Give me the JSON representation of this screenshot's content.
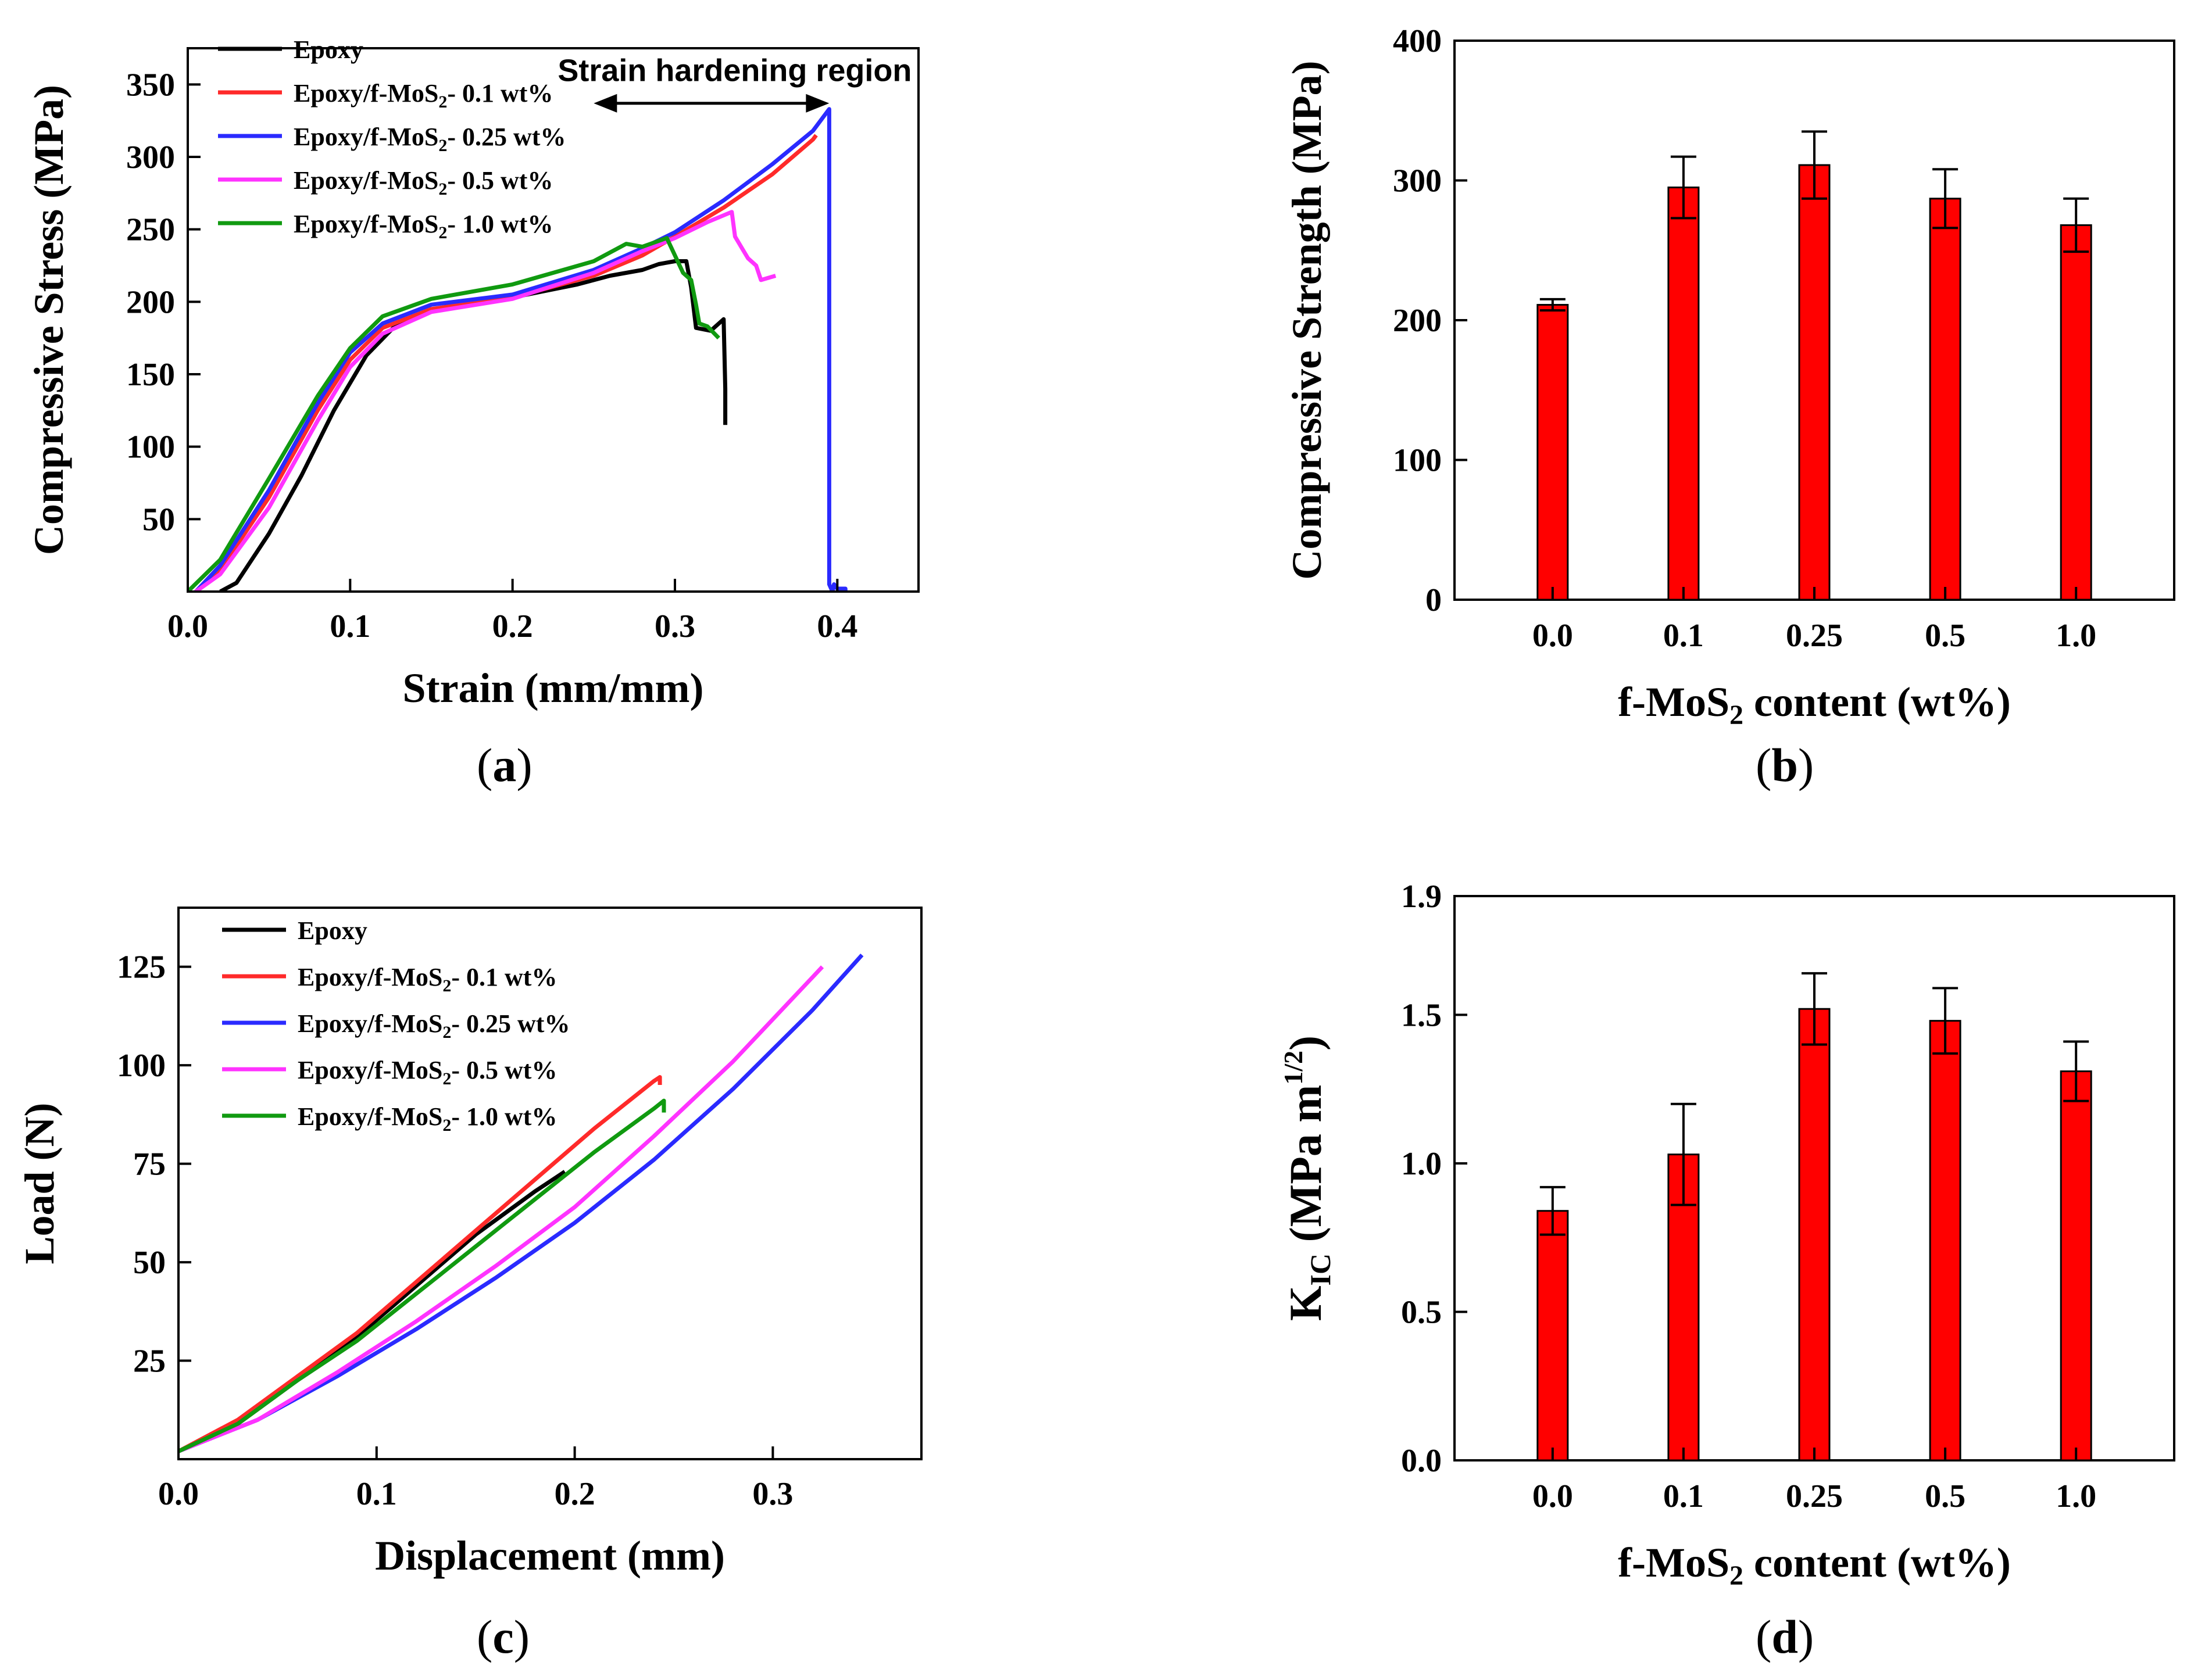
{
  "captions": {
    "a_open": "(",
    "a_letter": "a",
    "a_close": ")",
    "b_open": "(",
    "b_letter": "b",
    "b_close": ")",
    "c_open": "(",
    "c_letter": "c",
    "c_close": ")",
    "d_open": "(",
    "d_letter": "d",
    "d_close": ")"
  },
  "chart_data": [
    {
      "id": "a",
      "type": "line",
      "xlabel": "Strain (mm/mm)",
      "ylabel": "Compressive Stress (MPa)",
      "xlim": [
        0,
        0.45
      ],
      "ylim": [
        0,
        375
      ],
      "xticks": [
        0.0,
        0.1,
        0.2,
        0.3,
        0.4
      ],
      "yticks": [
        50,
        100,
        150,
        200,
        250,
        300,
        350
      ],
      "annotation": "Strain hardening region",
      "arrow_x": [
        0.25,
        0.395
      ],
      "arrow_y": 337,
      "series": [
        {
          "name_prefix": "Epoxy",
          "name_sub": "",
          "name_suffix": "",
          "color": "#000000",
          "points": [
            [
              0.02,
              0
            ],
            [
              0.03,
              6
            ],
            [
              0.05,
              40
            ],
            [
              0.07,
              80
            ],
            [
              0.09,
              125
            ],
            [
              0.11,
              163
            ],
            [
              0.13,
              186
            ],
            [
              0.16,
              197
            ],
            [
              0.2,
              203
            ],
            [
              0.24,
              212
            ],
            [
              0.26,
              218
            ],
            [
              0.28,
              222
            ],
            [
              0.29,
              226
            ],
            [
              0.3,
              228
            ],
            [
              0.307,
              228
            ],
            [
              0.31,
              210
            ],
            [
              0.313,
              182
            ],
            [
              0.322,
              180
            ],
            [
              0.33,
              188
            ],
            [
              0.331,
              140
            ],
            [
              0.331,
              115
            ]
          ]
        },
        {
          "name_prefix": "Epoxy/f-MoS",
          "name_sub": "2",
          "name_suffix": "- 0.1 wt%",
          "color": "#ff2a2a",
          "points": [
            [
              0.005,
              0
            ],
            [
              0.02,
              15
            ],
            [
              0.05,
              65
            ],
            [
              0.08,
              125
            ],
            [
              0.1,
              160
            ],
            [
              0.12,
              182
            ],
            [
              0.15,
              195
            ],
            [
              0.2,
              203
            ],
            [
              0.25,
              218
            ],
            [
              0.28,
              232
            ],
            [
              0.3,
              245
            ],
            [
              0.33,
              265
            ],
            [
              0.36,
              288
            ],
            [
              0.385,
              312
            ],
            [
              0.387,
              315
            ]
          ]
        },
        {
          "name_prefix": "Epoxy/f-MoS",
          "name_sub": "2",
          "name_suffix": "- 0.25 wt%",
          "color": "#2a2aff",
          "points": [
            [
              0.005,
              0
            ],
            [
              0.02,
              18
            ],
            [
              0.05,
              70
            ],
            [
              0.08,
              130
            ],
            [
              0.1,
              165
            ],
            [
              0.12,
              185
            ],
            [
              0.15,
              198
            ],
            [
              0.2,
              205
            ],
            [
              0.25,
              222
            ],
            [
              0.28,
              237
            ],
            [
              0.3,
              248
            ],
            [
              0.33,
              270
            ],
            [
              0.36,
              295
            ],
            [
              0.385,
              318
            ],
            [
              0.395,
              333
            ],
            [
              0.395,
              5
            ],
            [
              0.397,
              0
            ],
            [
              0.398,
              5
            ],
            [
              0.4,
              2
            ],
            [
              0.405,
              2
            ],
            [
              0.405,
              0
            ]
          ]
        },
        {
          "name_prefix": "Epoxy/f-MoS",
          "name_sub": "2",
          "name_suffix": "- 0.5 wt%",
          "color": "#ff33ff",
          "points": [
            [
              0.005,
              0
            ],
            [
              0.02,
              12
            ],
            [
              0.05,
              58
            ],
            [
              0.08,
              118
            ],
            [
              0.1,
              155
            ],
            [
              0.12,
              178
            ],
            [
              0.15,
              193
            ],
            [
              0.2,
              202
            ],
            [
              0.25,
              220
            ],
            [
              0.28,
              235
            ],
            [
              0.3,
              244
            ],
            [
              0.32,
              255
            ],
            [
              0.335,
              262
            ],
            [
              0.337,
              245
            ],
            [
              0.345,
              230
            ],
            [
              0.35,
              225
            ],
            [
              0.353,
              215
            ],
            [
              0.362,
              218
            ]
          ]
        },
        {
          "name_prefix": "Epoxy/f-MoS",
          "name_sub": "2",
          "name_suffix": "- 1.0 wt%",
          "color": "#109a10",
          "points": [
            [
              0,
              0
            ],
            [
              0.02,
              22
            ],
            [
              0.05,
              78
            ],
            [
              0.08,
              135
            ],
            [
              0.1,
              168
            ],
            [
              0.12,
              190
            ],
            [
              0.15,
              202
            ],
            [
              0.2,
              212
            ],
            [
              0.25,
              228
            ],
            [
              0.27,
              240
            ],
            [
              0.28,
              238
            ],
            [
              0.295,
              244
            ],
            [
              0.3,
              232
            ],
            [
              0.305,
              220
            ],
            [
              0.31,
              215
            ],
            [
              0.313,
              198
            ],
            [
              0.315,
              185
            ],
            [
              0.32,
              183
            ],
            [
              0.327,
              175
            ]
          ]
        }
      ]
    },
    {
      "id": "b",
      "type": "bar",
      "xlabel_prefix": "f-MoS",
      "xlabel_sub": "2",
      "xlabel_suffix": " content (wt%)",
      "ylabel": "Compressive Strength (MPa)",
      "categories": [
        "0.0",
        "0.1",
        "0.25",
        "0.5",
        "1.0"
      ],
      "values": [
        211,
        295,
        311,
        287,
        268
      ],
      "errors": [
        4,
        22,
        24,
        21,
        19
      ],
      "ylim": [
        0,
        400
      ],
      "yticks": [
        0,
        100,
        200,
        300,
        400
      ],
      "color": "#ff0000"
    },
    {
      "id": "c",
      "type": "line",
      "xlabel": "Displacement (mm)",
      "ylabel": "Load (N)",
      "xlim": [
        0,
        0.375
      ],
      "ylim": [
        0,
        140
      ],
      "xticks": [
        0.0,
        0.1,
        0.2,
        0.3
      ],
      "yticks": [
        25,
        50,
        75,
        100,
        125
      ],
      "series": [
        {
          "name_prefix": "Epoxy",
          "name_sub": "",
          "name_suffix": "",
          "color": "#000000",
          "points": [
            [
              0,
              2
            ],
            [
              0.03,
              9
            ],
            [
              0.06,
              20
            ],
            [
              0.09,
              31
            ],
            [
              0.12,
              44
            ],
            [
              0.15,
              57
            ],
            [
              0.18,
              68
            ],
            [
              0.195,
              73
            ]
          ]
        },
        {
          "name_prefix": "Epoxy/f-MoS",
          "name_sub": "2",
          "name_suffix": "- 0.1 wt%",
          "color": "#ff2a2a",
          "points": [
            [
              0,
              2
            ],
            [
              0.03,
              10
            ],
            [
              0.06,
              21
            ],
            [
              0.09,
              32
            ],
            [
              0.12,
              45
            ],
            [
              0.15,
              58
            ],
            [
              0.18,
              71
            ],
            [
              0.21,
              84
            ],
            [
              0.24,
              96
            ],
            [
              0.243,
              97
            ],
            [
              0.243,
              95
            ]
          ]
        },
        {
          "name_prefix": "Epoxy/f-MoS",
          "name_sub": "2",
          "name_suffix": "- 0.25 wt%",
          "color": "#2a2aff",
          "points": [
            [
              0,
              2
            ],
            [
              0.04,
              10
            ],
            [
              0.08,
              21
            ],
            [
              0.12,
              33
            ],
            [
              0.16,
              46
            ],
            [
              0.2,
              60
            ],
            [
              0.24,
              76
            ],
            [
              0.28,
              94
            ],
            [
              0.32,
              114
            ],
            [
              0.345,
              128
            ]
          ]
        },
        {
          "name_prefix": "Epoxy/f-MoS",
          "name_sub": "2",
          "name_suffix": "- 0.5 wt%",
          "color": "#ff33ff",
          "points": [
            [
              0,
              2
            ],
            [
              0.04,
              10
            ],
            [
              0.08,
              22
            ],
            [
              0.12,
              35
            ],
            [
              0.16,
              49
            ],
            [
              0.2,
              64
            ],
            [
              0.24,
              82
            ],
            [
              0.28,
              101
            ],
            [
              0.31,
              117
            ],
            [
              0.325,
              125
            ]
          ]
        },
        {
          "name_prefix": "Epoxy/f-MoS",
          "name_sub": "2",
          "name_suffix": "- 1.0 wt%",
          "color": "#109a10",
          "points": [
            [
              0,
              2
            ],
            [
              0.03,
              9
            ],
            [
              0.06,
              20
            ],
            [
              0.09,
              30
            ],
            [
              0.12,
              42
            ],
            [
              0.15,
              54
            ],
            [
              0.18,
              66
            ],
            [
              0.21,
              78
            ],
            [
              0.24,
              89
            ],
            [
              0.245,
              91
            ],
            [
              0.245,
              88
            ]
          ]
        }
      ]
    },
    {
      "id": "d",
      "type": "bar",
      "xlabel_prefix": "f-MoS",
      "xlabel_sub": "2",
      "xlabel_suffix": " content (wt%)",
      "ylabel_main": "K",
      "ylabel_sub": "IC",
      "ylabel_unit": " (MPa m",
      "ylabel_sup": "1/2",
      "ylabel_close": ")",
      "categories": [
        "0.0",
        "0.1",
        "0.25",
        "0.5",
        "1.0"
      ],
      "values": [
        0.84,
        1.03,
        1.52,
        1.48,
        1.31
      ],
      "errors": [
        0.08,
        0.17,
        0.12,
        0.11,
        0.1
      ],
      "ylim": [
        0,
        1.9
      ],
      "yticks": [
        0.0,
        0.5,
        1.0,
        1.5,
        1.9
      ],
      "ytick_labels": [
        "0.0",
        "0.5",
        "1.0",
        "1.5",
        "1.9"
      ],
      "color": "#ff0000"
    }
  ]
}
